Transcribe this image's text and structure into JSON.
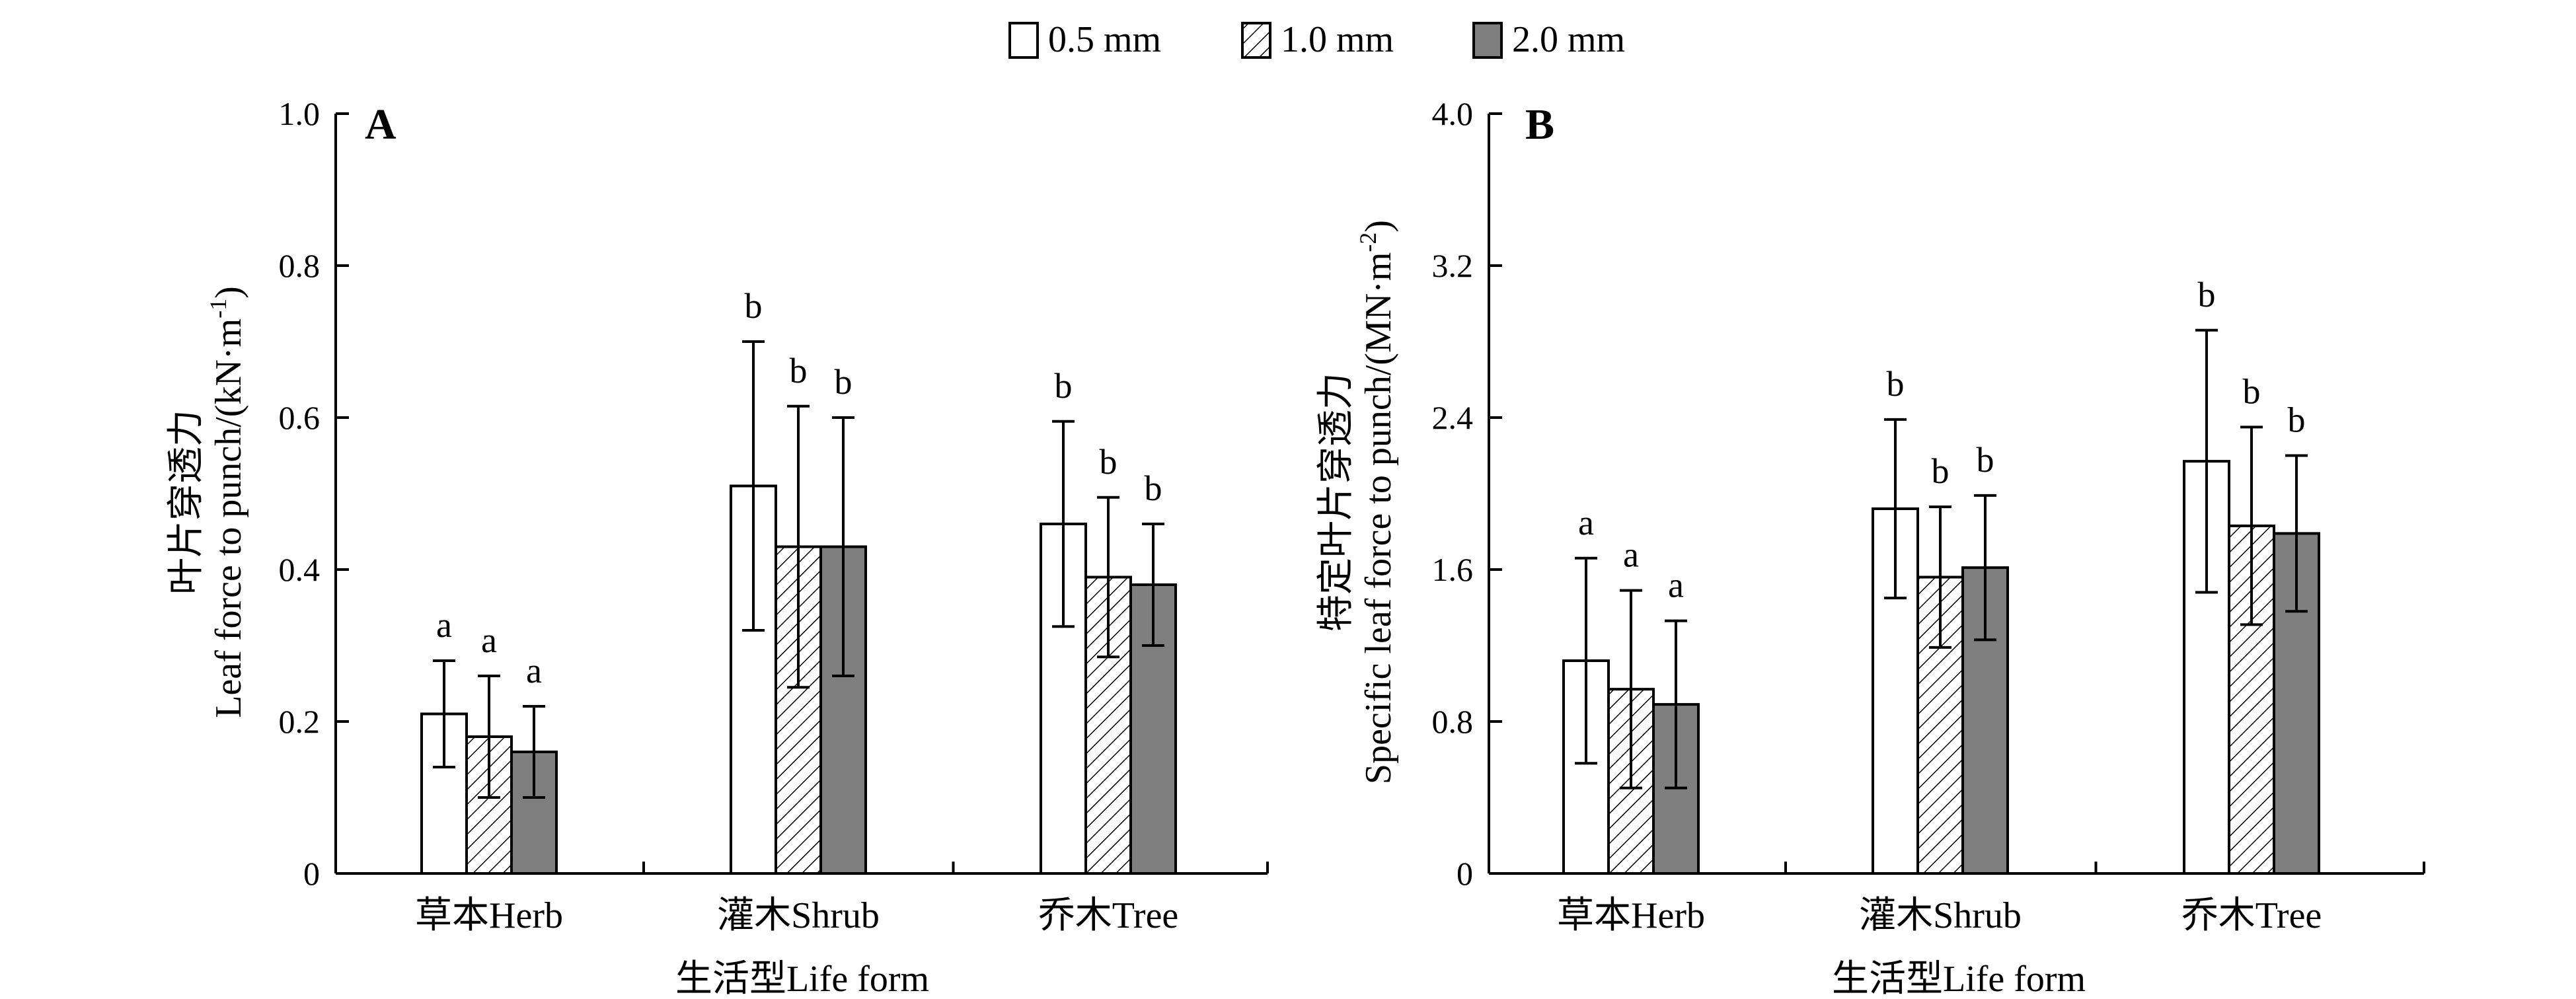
{
  "legend": {
    "items": [
      {
        "label": "0.5 mm",
        "pattern": "empty"
      },
      {
        "label": "1.0 mm",
        "pattern": "hatched"
      },
      {
        "label": "2.0 mm",
        "pattern": "gray"
      }
    ]
  },
  "colors": {
    "gray_fill": "#7f7f7f",
    "axis": "#000000"
  },
  "chart_data": [
    {
      "type": "bar",
      "panel": "A",
      "ylabel_cn": "叶片穿透力",
      "ylabel_en": "Leaf force to punch/(kN·m",
      "ylabel_sup": "-1",
      "ylabel_end": ")",
      "xlabel": "生活型Life form",
      "ylim": [
        0,
        1.0
      ],
      "yticks": [
        0,
        0.2,
        0.4,
        0.6,
        0.8,
        1.0
      ],
      "ytick_labels": [
        "0",
        "0.2",
        "0.4",
        "0.6",
        "0.8",
        "1.0"
      ],
      "categories": [
        "草本Herb",
        "灌木Shrub",
        "乔木Tree"
      ],
      "series": [
        {
          "name": "0.5 mm",
          "values": [
            0.21,
            0.51,
            0.46
          ],
          "errors": [
            0.07,
            0.19,
            0.135
          ],
          "letters": [
            "a",
            "b",
            "b"
          ]
        },
        {
          "name": "1.0 mm",
          "values": [
            0.18,
            0.43,
            0.39
          ],
          "errors": [
            0.08,
            0.185,
            0.105
          ],
          "letters": [
            "a",
            "b",
            "b"
          ]
        },
        {
          "name": "2.0 mm",
          "values": [
            0.16,
            0.43,
            0.38
          ],
          "errors": [
            0.06,
            0.17,
            0.08
          ],
          "letters": [
            "a",
            "b",
            "b"
          ]
        }
      ]
    },
    {
      "type": "bar",
      "panel": "B",
      "ylabel_cn": "特定叶片穿透力",
      "ylabel_en": "Specific leaf force to punch/(MN·m",
      "ylabel_sup": "-2",
      "ylabel_end": ")",
      "xlabel": "生活型Life form",
      "ylim": [
        0,
        4.0
      ],
      "yticks": [
        0,
        0.8,
        1.6,
        2.4,
        3.2,
        4.0
      ],
      "ytick_labels": [
        "0",
        "0.8",
        "1.6",
        "2.4",
        "3.2",
        "4.0"
      ],
      "categories": [
        "草本Herb",
        "灌木Shrub",
        "乔木Tree"
      ],
      "series": [
        {
          "name": "0.5 mm",
          "values": [
            1.12,
            1.92,
            2.17
          ],
          "errors": [
            0.54,
            0.47,
            0.69
          ],
          "letters": [
            "a",
            "b",
            "b"
          ]
        },
        {
          "name": "1.0 mm",
          "values": [
            0.97,
            1.56,
            1.83
          ],
          "errors": [
            0.52,
            0.37,
            0.52
          ],
          "letters": [
            "a",
            "b",
            "b"
          ]
        },
        {
          "name": "2.0 mm",
          "values": [
            0.89,
            1.61,
            1.79
          ],
          "errors": [
            0.44,
            0.38,
            0.41
          ],
          "letters": [
            "a",
            "b",
            "b"
          ]
        }
      ]
    }
  ]
}
